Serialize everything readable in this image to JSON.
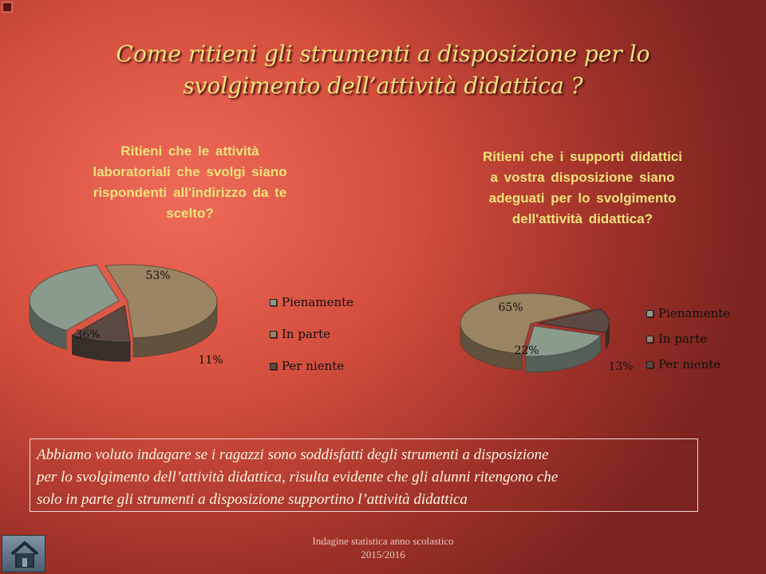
{
  "title_lines": [
    "Come ritieni gli strumenti a disposizione per lo",
    "svolgimento dell’attività didattica ?"
  ],
  "chart_data": [
    {
      "type": "pie",
      "title_lines": [
        "Ritieni che le attività",
        "laboratoriali che svolgi siano",
        "rispondenti all'indirizzo da te",
        "scelto?"
      ],
      "labels": [
        "Pienamente",
        "In parte",
        "Per niente"
      ],
      "values": [
        36,
        53,
        11
      ],
      "value_labels": [
        "36%",
        "53%",
        "11%"
      ],
      "colors": [
        "#8a9a8c",
        "#9b8463",
        "#5b4a44"
      ],
      "legend_position": "right"
    },
    {
      "type": "pie",
      "title_lines": [
        "Ritieni che i supporti didattici",
        "a vostra disposizione siano",
        "adeguati per lo svolgimento",
        "dell'attività didattica?"
      ],
      "labels": [
        "Pienamente",
        "In parte",
        "Per niente"
      ],
      "values": [
        22,
        65,
        13
      ],
      "value_labels": [
        "22%",
        "65%",
        "13%"
      ],
      "colors": [
        "#8a9a8c",
        "#9b8463",
        "#5b4a44"
      ],
      "legend_position": "right"
    }
  ],
  "summary_lines": [
    "Abbiamo voluto indagare se i ragazzi sono soddisfatti degli strumenti a disposizione",
    "per lo svolgimento dell’attività didattica, risulta evidente che gli alunni ritengono che",
    "solo in parte gli strumenti a disposizione supportino l’attività didattica"
  ],
  "footer_lines": [
    "Indagine statistica anno scolastico",
    "2015/2016"
  ],
  "home_icon": "home-icon"
}
